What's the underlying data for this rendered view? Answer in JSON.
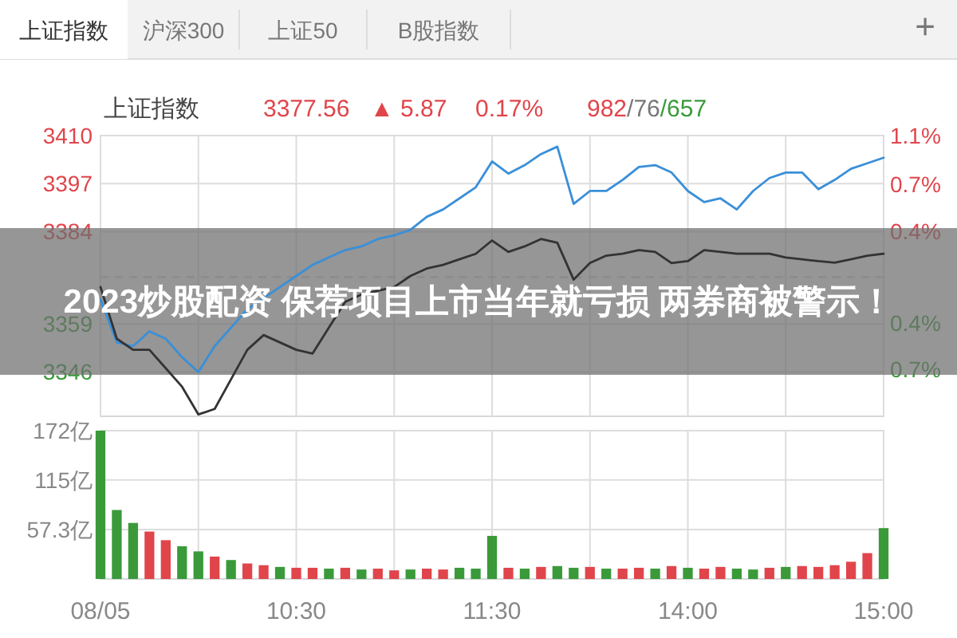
{
  "chart_data": [
    {
      "type": "line",
      "title": "2023炒股配资 保荐项目上市当年就亏损 两券商被警示！",
      "annotations": [
        "上证指数",
        "沪深300",
        "上证50",
        "B股指数",
        "+",
        "上证指数",
        "3377.56",
        "▲ 5.87",
        "0.17%",
        "982/76/657"
      ],
      "categories": [
        null,
        null,
        null,
        null,
        null,
        null,
        null,
        null,
        null,
        null,
        null,
        null,
        null,
        null,
        null,
        null,
        null,
        null,
        null,
        null,
        null,
        null,
        null,
        null,
        null,
        null,
        null,
        null,
        null,
        null,
        null,
        null,
        null,
        null,
        null,
        null,
        null,
        null,
        null,
        null,
        null,
        null,
        null,
        null,
        null,
        null,
        null,
        null,
        null
      ],
      "series": [
        {
          "color": "#3a8fd8",
          "values": [
            3365.7,
            3354,
            3353,
            3357,
            3355,
            3350,
            3346,
            3353,
            3358,
            3363,
            3366,
            3369,
            3372,
            3375,
            3377,
            3379,
            3380,
            3382,
            3383,
            3384.5,
            3388,
            3390,
            3393,
            3396,
            3403,
            3399.7,
            3402,
            3405,
            3407,
            3391.5,
            3395,
            3395,
            3398,
            3401.5,
            3402,
            3400,
            3395,
            3392,
            3393,
            3390,
            3395,
            3398.5,
            3400,
            3400,
            3395.5,
            3398,
            3401,
            3402.5,
            3404
          ]
        },
        {
          "color": "#333333",
          "values": [
            3369,
            3355,
            3352,
            3352,
            3347,
            3342,
            3334.5,
            3336,
            3344,
            3352,
            3356,
            3354,
            3352,
            3351,
            3358,
            3365,
            3367,
            3368,
            3369,
            3372,
            3374,
            3375,
            3376.5,
            3378,
            3381.6,
            3378.5,
            3380,
            3382,
            3381,
            3371,
            3375.5,
            3377.5,
            3378,
            3379,
            3378.5,
            3375.5,
            3376,
            3379,
            3378.5,
            3378,
            3378,
            3378,
            3377,
            3376.5,
            3376,
            3375.6,
            3376.5,
            3377.5,
            3378
          ]
        }
      ],
      "ylim": [
        3334,
        3410
      ],
      "yticks": [
        3410,
        3397,
        3384,
        3359,
        3346
      ],
      "y2lim": [
        -1.12,
        1.14
      ],
      "y2ticks": [
        {
          "value": 1.14,
          "label": "1.1%"
        },
        {
          "value": 0.75,
          "label": "0.7%"
        },
        {
          "value": 0.37,
          "label": "0.4%"
        },
        {
          "value": -0.37,
          "label": "0.4%"
        },
        {
          "value": -0.74,
          "label": "0.7%"
        }
      ],
      "ref_lines": [
        {
          "axis": "y",
          "value": 3371.69,
          "color": "#cccccc",
          "line_style": "dashed"
        }
      ],
      "grid": true,
      "tick_labels": "y"
    },
    {
      "type": "bar",
      "categories": [
        "08/05",
        null,
        null,
        null,
        null,
        null,
        null,
        null,
        null,
        null,
        null,
        null,
        "10:30",
        null,
        null,
        null,
        null,
        null,
        null,
        null,
        null,
        null,
        null,
        null,
        "11:30",
        null,
        null,
        null,
        null,
        null,
        null,
        null,
        null,
        null,
        null,
        null,
        "14:00",
        null,
        null,
        null,
        null,
        null,
        null,
        null,
        null,
        null,
        null,
        null,
        "15:00"
      ],
      "values": [
        172,
        80,
        65,
        55,
        45,
        38,
        32,
        26,
        22,
        18,
        16,
        14,
        13,
        13,
        12,
        13,
        11,
        12,
        10,
        11,
        12,
        11,
        13,
        12,
        50,
        13,
        12,
        14,
        15,
        13,
        14,
        12,
        12,
        13,
        12,
        15,
        13,
        12,
        14,
        12,
        11,
        13,
        14,
        15,
        14,
        16,
        20,
        30,
        59
      ],
      "colors": [
        "#3a9a3a",
        "#3a9a3a",
        "#3a9a3a",
        "#e0454b",
        "#e0454b",
        "#3a9a3a",
        "#3a9a3a",
        "#e0454b",
        "#3a9a3a",
        "#e0454b",
        "#e0454b",
        "#3a9a3a",
        "#e0454b",
        "#e0454b",
        "#3a9a3a",
        "#e0454b",
        "#3a9a3a",
        "#e0454b",
        "#e0454b",
        "#3a9a3a",
        "#e0454b",
        "#e0454b",
        "#3a9a3a",
        "#3a9a3a",
        "#3a9a3a",
        "#e0454b",
        "#3a9a3a",
        "#e0454b",
        "#3a9a3a",
        "#3a9a3a",
        "#e0454b",
        "#3a9a3a",
        "#e0454b",
        "#e0454b",
        "#3a9a3a",
        "#e0454b",
        "#3a9a3a",
        "#e0454b",
        "#e0454b",
        "#3a9a3a",
        "#3a9a3a",
        "#e0454b",
        "#3a9a3a",
        "#e0454b",
        "#e0454b",
        "#e0454b",
        "#e0454b",
        "#e0454b",
        "#3a9a3a"
      ],
      "ylim": [
        0,
        172
      ],
      "yticks": [
        {
          "value": 57.3,
          "label": "57.3亿"
        },
        {
          "value": 115,
          "label": "115亿"
        },
        {
          "value": 172,
          "label": "172亿"
        }
      ],
      "grid": true
    }
  ]
}
